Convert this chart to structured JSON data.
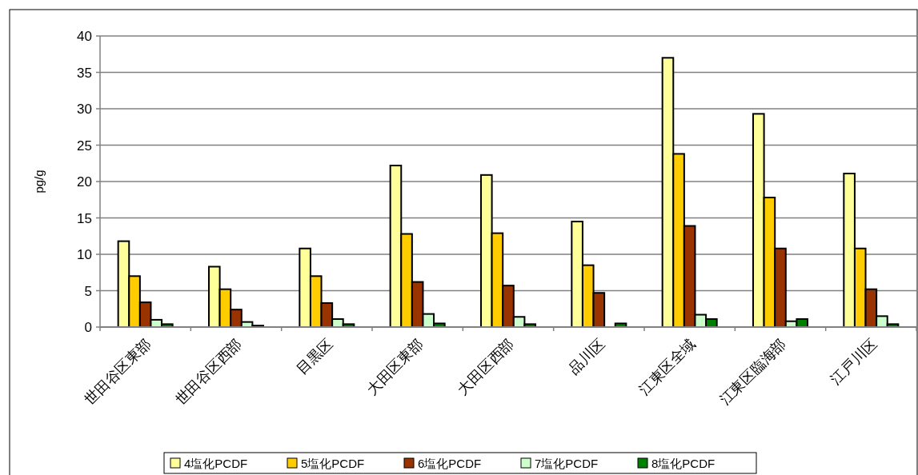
{
  "chart_data": {
    "type": "bar",
    "ylabel": "pg/g",
    "categories": [
      "世田谷区東部",
      "世田谷区西部",
      "目黒区",
      "大田区東部",
      "大田区西部",
      "品川区",
      "江東区全域",
      "江東区臨海部",
      "江戸川区"
    ],
    "series": [
      {
        "name": "4塩化PCDF",
        "color": "#ffff99",
        "values": [
          11.8,
          8.3,
          10.8,
          22.2,
          20.9,
          14.5,
          37,
          29.3,
          21.1
        ]
      },
      {
        "name": "5塩化PCDF",
        "color": "#ffcc00",
        "values": [
          7,
          5.2,
          7,
          12.8,
          12.9,
          8.5,
          23.8,
          17.8,
          10.8
        ]
      },
      {
        "name": "6塩化PCDF",
        "color": "#993300",
        "values": [
          3.4,
          2.4,
          3.3,
          6.2,
          5.7,
          4.7,
          13.9,
          10.8,
          5.2
        ]
      },
      {
        "name": "7塩化PCDF",
        "color": "#ccffcc",
        "values": [
          1,
          0.7,
          1.1,
          1.8,
          1.4,
          null,
          1.7,
          0.8,
          1.5
        ]
      },
      {
        "name": "8塩化PCDF",
        "color": "#008000",
        "values": [
          0.4,
          0.2,
          0.4,
          0.5,
          0.4,
          0.5,
          1.1,
          1.1,
          0.4
        ]
      }
    ],
    "ylim": [
      0,
      40
    ],
    "yticks": [
      0,
      5,
      10,
      15,
      20,
      25,
      30,
      35,
      40
    ],
    "grid": "y",
    "legend": "bottom"
  }
}
